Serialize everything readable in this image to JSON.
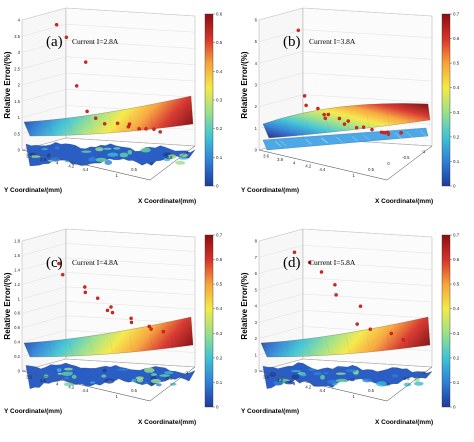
{
  "colors": {
    "surface_gradient": [
      "#1e3a9a",
      "#2f7fd6",
      "#3fc4d6",
      "#9be08a",
      "#f5ea46",
      "#f7a33a",
      "#d7322a",
      "#8b0f10"
    ],
    "scatter_point": "#e0231c",
    "box": "#999999"
  },
  "chart_data": [
    {
      "type": "surface3d",
      "panel_label": "(a)",
      "current_label": "Current I=2.8A",
      "zlabel": "Relative Error/(%)",
      "xlabel": "X Coordinate/(mm)",
      "ylabel": "Y Coordinate/(mm)",
      "zlim": [
        0,
        4
      ],
      "z_ticks": [
        "0",
        "0.5",
        "1",
        "1.5",
        "2",
        "2.5",
        "3",
        "3.5",
        "4"
      ],
      "x_ticks": [
        "1",
        "0.5",
        "0",
        "-0.5",
        "-1"
      ],
      "y_ticks": [
        "3.6",
        "3.8",
        "4",
        "4.2",
        "4.4"
      ],
      "colorbar_ticks": [
        "0",
        "0.1",
        "0.2",
        "0.3",
        "0.4",
        "0.5",
        "0.6"
      ],
      "colorbar_range": [
        0,
        0.6
      ],
      "scatter_values": [
        3.55,
        3.1,
        2.4,
        1.65,
        0.9,
        0.7,
        0.55,
        0.5,
        0.45,
        0.4,
        0.35,
        0.3,
        0.3,
        0.25
      ]
    },
    {
      "type": "surface3d",
      "panel_label": "(b)",
      "current_label": "Current I=3.8A",
      "zlabel": "Relative Error/(%)",
      "xlabel": "X Coordinate/(mm)",
      "ylabel": "Y Coordinate/(mm)",
      "zlim": [
        0,
        6
      ],
      "z_ticks": [
        "0",
        "1",
        "2",
        "3",
        "4",
        "5",
        "6"
      ],
      "x_ticks": [
        "1",
        "0.5",
        "0",
        "-0.5",
        "-1"
      ],
      "y_ticks": [
        "3.6",
        "3.8",
        "4",
        "4.2",
        "4.4"
      ],
      "colorbar_ticks": [
        "0",
        "0.1",
        "0.2",
        "0.3",
        "0.4",
        "0.5",
        "0.6",
        "0.7"
      ],
      "colorbar_range": [
        0,
        0.7
      ],
      "scatter_values": [
        5.0,
        2.0,
        1.6,
        1.4,
        1.2,
        1.1,
        1.0,
        0.9,
        0.8,
        0.7,
        0.6,
        0.55,
        0.5,
        0.45,
        0.4,
        0.35,
        0.3,
        0.25
      ]
    },
    {
      "type": "surface3d",
      "panel_label": "(c)",
      "current_label": "Current I=4.8A",
      "zlabel": "Relative Error/(%)",
      "xlabel": "X Coordinate/(mm)",
      "ylabel": "Y Coordinate/(mm)",
      "zlim": [
        0,
        1.8
      ],
      "z_ticks": [
        "0",
        "0.2",
        "0.4",
        "0.6",
        "0.8",
        "1",
        "1.2",
        "1.4",
        "1.6",
        "1.8"
      ],
      "x_ticks": [
        "1",
        "0.5",
        "0",
        "-0.5",
        "-1"
      ],
      "y_ticks": [
        "3.6",
        "3.8",
        "4",
        "4.2",
        "4.4"
      ],
      "colorbar_ticks": [
        "0",
        "0.1",
        "0.2",
        "0.3",
        "0.4",
        "0.5",
        "0.6",
        "0.7"
      ],
      "colorbar_range": [
        0,
        0.7
      ],
      "scatter_values": [
        1.35,
        1.2,
        1.05,
        0.95,
        0.85,
        0.75,
        0.7,
        0.65,
        0.6,
        0.55,
        0.5,
        0.45,
        0.42
      ]
    },
    {
      "type": "surface3d",
      "panel_label": "(d)",
      "current_label": "Current I=5.8A",
      "zlabel": "Relative Error/(%)",
      "xlabel": "X Coordinate/(mm)",
      "ylabel": "Y Coordinate/(mm)",
      "zlim": [
        0,
        8
      ],
      "z_ticks": [
        "0",
        "1",
        "2",
        "3",
        "4",
        "5",
        "6",
        "7",
        "8"
      ],
      "x_ticks": [
        "1",
        "0.5",
        "0",
        "-0.5",
        "-1"
      ],
      "y_ticks": [
        "3.6",
        "3.8",
        "4",
        "4.2",
        "4.4"
      ],
      "colorbar_ticks": [
        "0",
        "0.1",
        "0.2",
        "0.3",
        "0.4",
        "0.5",
        "0.6",
        "0.7"
      ],
      "colorbar_range": [
        0,
        0.7
      ],
      "scatter_values": [
        6.6,
        6.1,
        5.4,
        4.8,
        4.1,
        3.4,
        2.3,
        1.9,
        1.6,
        1.3
      ]
    }
  ]
}
